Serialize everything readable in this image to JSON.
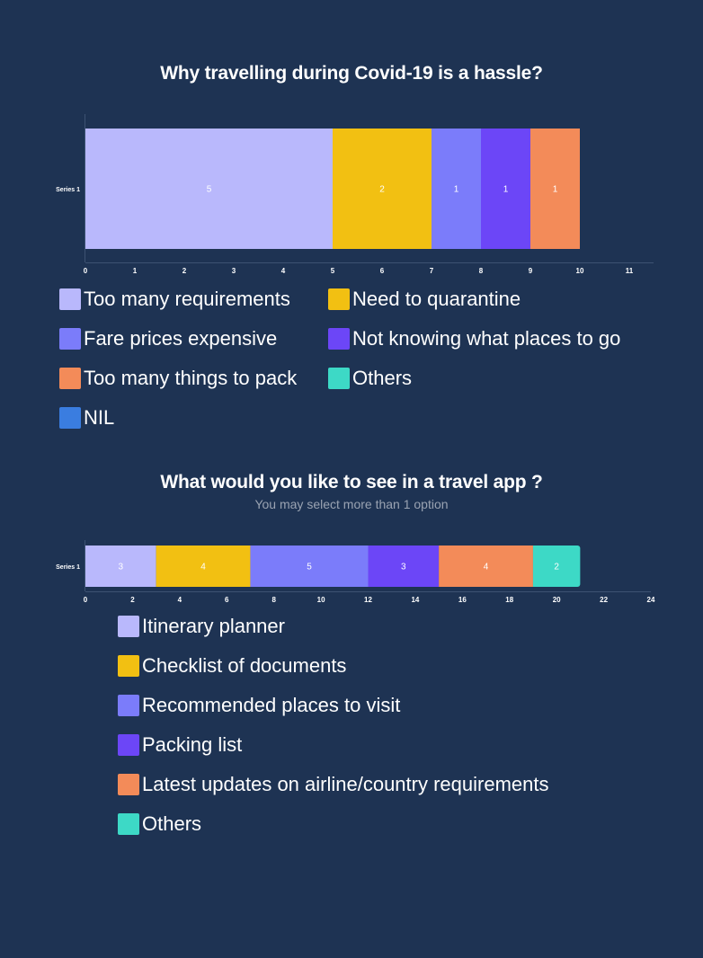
{
  "chart_data": [
    {
      "type": "bar",
      "orientation": "horizontal",
      "stacked": true,
      "title": "Why travelling during Covid-19 is a hassle?",
      "categories": [
        "Series 1"
      ],
      "series": [
        {
          "name": "Too many requirements",
          "values": [
            5
          ],
          "color": "#b9b8fc"
        },
        {
          "name": "Need to quarantine",
          "values": [
            2
          ],
          "color": "#f2c012"
        },
        {
          "name": "Fare prices expensive",
          "values": [
            1
          ],
          "color": "#7b7cfa"
        },
        {
          "name": "Not knowing what places to go",
          "values": [
            1
          ],
          "color": "#6c46f7"
        },
        {
          "name": "Too many things to pack",
          "values": [
            1
          ],
          "color": "#f38b59"
        },
        {
          "name": "Others",
          "values": [
            0
          ],
          "color": "#3dd9c6"
        },
        {
          "name": "NIL",
          "values": [
            0
          ],
          "color": "#3a7de0"
        }
      ],
      "xlim": [
        0,
        11
      ],
      "xticks": [
        "0",
        "1",
        "2",
        "3",
        "4",
        "5",
        "6",
        "7",
        "8",
        "9",
        "10",
        "11"
      ],
      "legend_position": "bottom"
    },
    {
      "type": "bar",
      "orientation": "horizontal",
      "stacked": true,
      "title": "What would you like to see in a travel app ?",
      "subtitle": "You may select more than 1 option",
      "categories": [
        "Series 1"
      ],
      "series": [
        {
          "name": "Itinerary planner",
          "values": [
            3
          ],
          "color": "#b9b8fc"
        },
        {
          "name": "Checklist of documents",
          "values": [
            4
          ],
          "color": "#f2c012"
        },
        {
          "name": "Recommended places to visit",
          "values": [
            5
          ],
          "color": "#7b7cfa"
        },
        {
          "name": "Packing list",
          "values": [
            3
          ],
          "color": "#6c46f7"
        },
        {
          "name": "Latest updates on airline/country requirements",
          "values": [
            4
          ],
          "color": "#f38b59"
        },
        {
          "name": "Others",
          "values": [
            2
          ],
          "color": "#3dd9c6"
        }
      ],
      "xlim": [
        0,
        24
      ],
      "xticks": [
        "0",
        "2",
        "4",
        "6",
        "8",
        "10",
        "12",
        "14",
        "16",
        "18",
        "20",
        "22",
        "24"
      ],
      "legend_position": "bottom"
    }
  ]
}
